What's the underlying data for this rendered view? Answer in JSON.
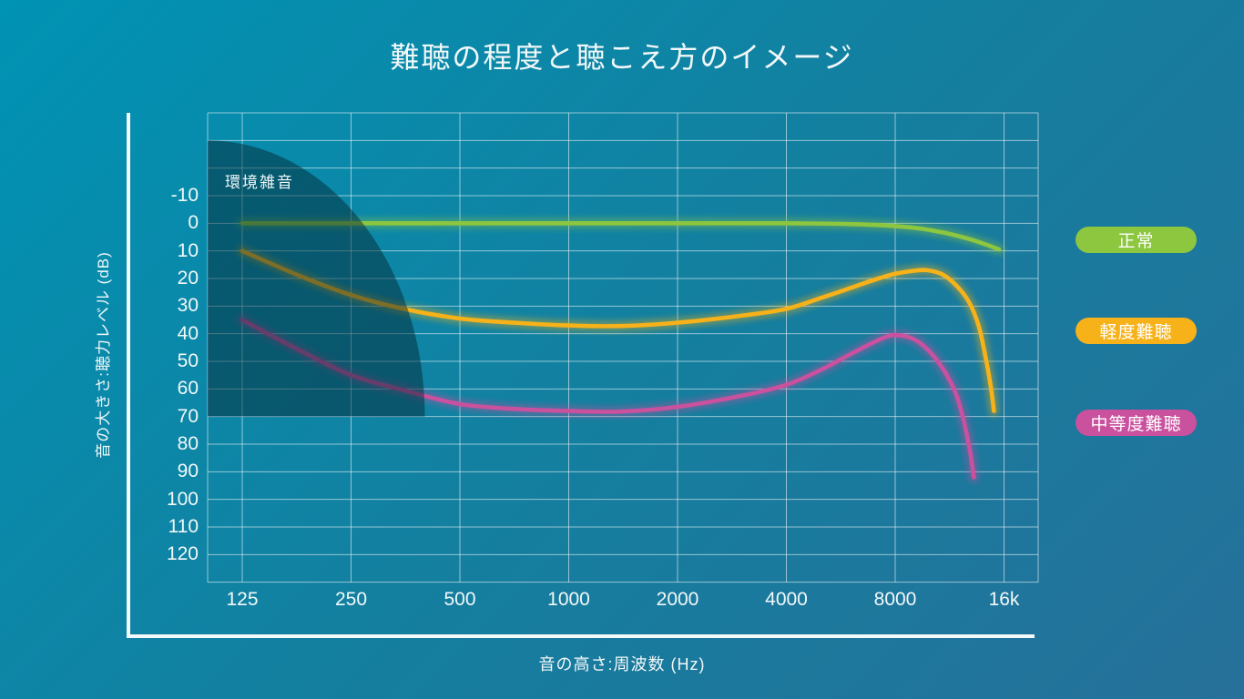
{
  "title": "難聴の程度と聴こえ方のイメージ",
  "axes": {
    "x_label": "音の高さ:周波数 (Hz)",
    "y_label": "音の大きさ:聴力レベル (dB)",
    "x_ticks": [
      "125",
      "250",
      "500",
      "1000",
      "2000",
      "4000",
      "8000",
      "16k"
    ],
    "y_ticks": [
      "-10",
      "0",
      "10",
      "20",
      "30",
      "40",
      "50",
      "60",
      "70",
      "80",
      "90",
      "100",
      "110",
      "120"
    ]
  },
  "noise_region": {
    "label": "環境雑音"
  },
  "legend": [
    {
      "label": "正常",
      "color": "#8dc63f"
    },
    {
      "label": "軽度難聴",
      "color": "#f7b219"
    },
    {
      "label": "中等度難聴",
      "color": "#c9519e"
    }
  ],
  "colors": {
    "grid_line": "rgba(255,255,255,0.55)",
    "axis_frame": "#f4f9fa",
    "noise_fill": "rgba(3,42,54,0.5)",
    "background_start": "#0093b4",
    "background_end": "#26709a"
  },
  "chart_data": {
    "type": "line",
    "title": "難聴の程度と聴こえ方のイメージ",
    "xlabel": "音の高さ:周波数 (Hz)",
    "ylabel": "音の大きさ:聴力レベル (dB)",
    "x_scale": "log2",
    "x_ticks_hz": [
      125,
      250,
      500,
      1000,
      2000,
      4000,
      8000,
      16000
    ],
    "ylim": [
      -10,
      120
    ],
    "y_inverted": true,
    "grid": true,
    "legend_position": "right",
    "series": [
      {
        "name": "正常",
        "color": "#8dc63f",
        "points": [
          [
            125,
            0
          ],
          [
            250,
            0
          ],
          [
            500,
            0
          ],
          [
            1000,
            0
          ],
          [
            2000,
            0
          ],
          [
            4000,
            0
          ],
          [
            6000,
            0.3
          ],
          [
            8000,
            1
          ],
          [
            9500,
            2
          ],
          [
            11000,
            3.5
          ],
          [
            12500,
            5.3
          ],
          [
            14000,
            7.3
          ],
          [
            15500,
            9.5
          ]
        ]
      },
      {
        "name": "軽度難聴",
        "color": "#f7b219",
        "points": [
          [
            125,
            10
          ],
          [
            180,
            19
          ],
          [
            250,
            26
          ],
          [
            350,
            31
          ],
          [
            500,
            34.5
          ],
          [
            700,
            36
          ],
          [
            1000,
            37
          ],
          [
            1400,
            37.2
          ],
          [
            2000,
            36
          ],
          [
            3000,
            33.5
          ],
          [
            4000,
            31
          ],
          [
            5000,
            27
          ],
          [
            6000,
            23.5
          ],
          [
            7000,
            20.5
          ],
          [
            8000,
            18.3
          ],
          [
            9000,
            17.2
          ],
          [
            9800,
            17
          ],
          [
            10800,
            18.5
          ],
          [
            11800,
            22.5
          ],
          [
            12800,
            28.5
          ],
          [
            13600,
            37
          ],
          [
            14200,
            48
          ],
          [
            14700,
            59
          ],
          [
            15000,
            68
          ]
        ]
      },
      {
        "name": "中等度難聴",
        "color": "#c9519e",
        "points": [
          [
            125,
            35
          ],
          [
            180,
            46
          ],
          [
            250,
            55
          ],
          [
            350,
            60.5
          ],
          [
            500,
            65.5
          ],
          [
            700,
            67.2
          ],
          [
            1000,
            68
          ],
          [
            1400,
            68.2
          ],
          [
            2000,
            66.5
          ],
          [
            3000,
            62.5
          ],
          [
            4000,
            58.5
          ],
          [
            5000,
            53
          ],
          [
            6000,
            47.5
          ],
          [
            7000,
            43
          ],
          [
            7600,
            41
          ],
          [
            8000,
            40.5
          ],
          [
            8700,
            41.2
          ],
          [
            9400,
            43.5
          ],
          [
            10200,
            48
          ],
          [
            11000,
            54
          ],
          [
            11800,
            62
          ],
          [
            12400,
            72
          ],
          [
            12900,
            83
          ],
          [
            13200,
            92
          ]
        ]
      }
    ],
    "noise_region": {
      "label": "環境雑音",
      "top_db": -30,
      "bottom_db": 70,
      "right_hz": 400
    }
  }
}
